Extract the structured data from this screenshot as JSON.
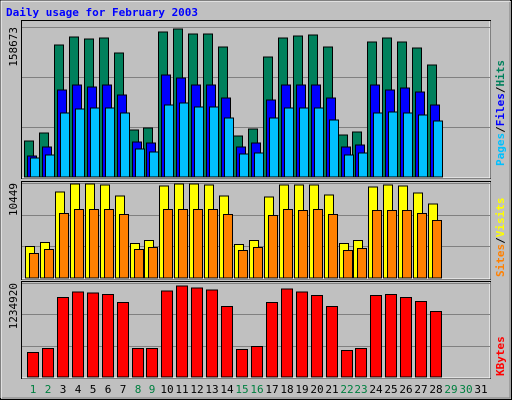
{
  "chart_data": {
    "type": "bar",
    "title": "Daily usage for February 2003",
    "categories": [
      "1",
      "2",
      "3",
      "4",
      "5",
      "6",
      "7",
      "8",
      "9",
      "10",
      "11",
      "12",
      "13",
      "14",
      "15",
      "16",
      "17",
      "18",
      "19",
      "20",
      "21",
      "22",
      "23",
      "24",
      "25",
      "26",
      "27",
      "28",
      "29",
      "30",
      "31"
    ],
    "category_colors": [
      "#008040",
      "#008040",
      "#000000",
      "#000000",
      "#000000",
      "#000000",
      "#000000",
      "#008040",
      "#008040",
      "#000000",
      "#000000",
      "#000000",
      "#000000",
      "#000000",
      "#008040",
      "#008040",
      "#000000",
      "#000000",
      "#000000",
      "#000000",
      "#000000",
      "#008040",
      "#008040",
      "#000000",
      "#000000",
      "#000000",
      "#000000",
      "#000000",
      "#008040",
      "#008040",
      "#000000"
    ],
    "legend_separator": "/",
    "panels": [
      {
        "ylim": [
          0,
          158673
        ],
        "yticks": [
          158673
        ],
        "series": [
          {
            "name": "Hits",
            "color": "#00805c",
            "values": [
              38082,
              46544,
              139632,
              148095,
              145979,
              147037,
              131170,
              49718,
              51833,
              153384,
              156557,
              151269,
              151269,
              137517,
              43371,
              50775,
              126938,
              147037,
              149153,
              150210,
              137517,
              44428,
              47602,
              142806,
              147037,
              142806,
              136459,
              118476,
              null,
              null,
              null
            ]
          },
          {
            "name": "Files",
            "color": "#0000ff",
            "values": [
              22214,
              31735,
              92030,
              97318,
              95202,
              97318,
              86740,
              37023,
              35966,
              107896,
              104724,
              97318,
              97318,
              83568,
              31735,
              35966,
              81452,
              97318,
              97318,
              97318,
              83568,
              31735,
              33850,
              97318,
              92030,
              94146,
              89914,
              76163,
              null,
              null,
              null
            ]
          },
          {
            "name": "Pages",
            "color": "#00c0ff",
            "values": [
              20099,
              23272,
              67700,
              71932,
              72990,
              72990,
              67700,
              29619,
              26446,
              76163,
              78279,
              74047,
              74047,
              62411,
              24330,
              25388,
              62411,
              72990,
              72990,
              72990,
              60296,
              23272,
              25388,
              67700,
              68758,
              67700,
              65585,
              59238,
              null,
              null,
              null
            ]
          }
        ]
      },
      {
        "ylim": [
          0,
          10449
        ],
        "yticks": [
          10449
        ],
        "series": [
          {
            "name": "Visits",
            "color": "#ffff00",
            "values": [
              3483,
              3918,
              9469,
              10340,
              10340,
              10231,
              9034,
              3809,
              4136,
              10122,
              10340,
              10340,
              10231,
              9034,
              3701,
              4136,
              8925,
              10231,
              10231,
              10231,
              9143,
              3809,
              4136,
              10013,
              10231,
              10122,
              9360,
              8163,
              null,
              null,
              null
            ]
          },
          {
            "name": "Sites",
            "color": "#ff8000",
            "values": [
              2721,
              3156,
              7075,
              7510,
              7510,
              7510,
              6966,
              3156,
              3374,
              7510,
              7510,
              7510,
              7510,
              6966,
              3048,
              3374,
              6857,
              7510,
              7401,
              7510,
              6966,
              3048,
              3265,
              7401,
              7401,
              7401,
              7075,
              6313,
              null,
              null,
              null
            ]
          }
        ]
      },
      {
        "ylim": [
          0,
          1234920
        ],
        "yticks": [
          1234920
        ],
        "series": [
          {
            "name": "KBytes",
            "color": "#ff0000",
            "values": [
              321600,
              373056,
              1041984,
              1119168,
              1106304,
              1080576,
              977664,
              373056,
              373056,
              1132032,
              1196352,
              1170624,
              1144896,
              926208,
              360192,
              398784,
              977664,
              1157760,
              1119168,
              1067712,
              926208,
              347328,
              373056,
              1067712,
              1080576,
              1041984,
              990528,
              861888,
              null,
              null,
              null
            ]
          }
        ]
      }
    ]
  }
}
